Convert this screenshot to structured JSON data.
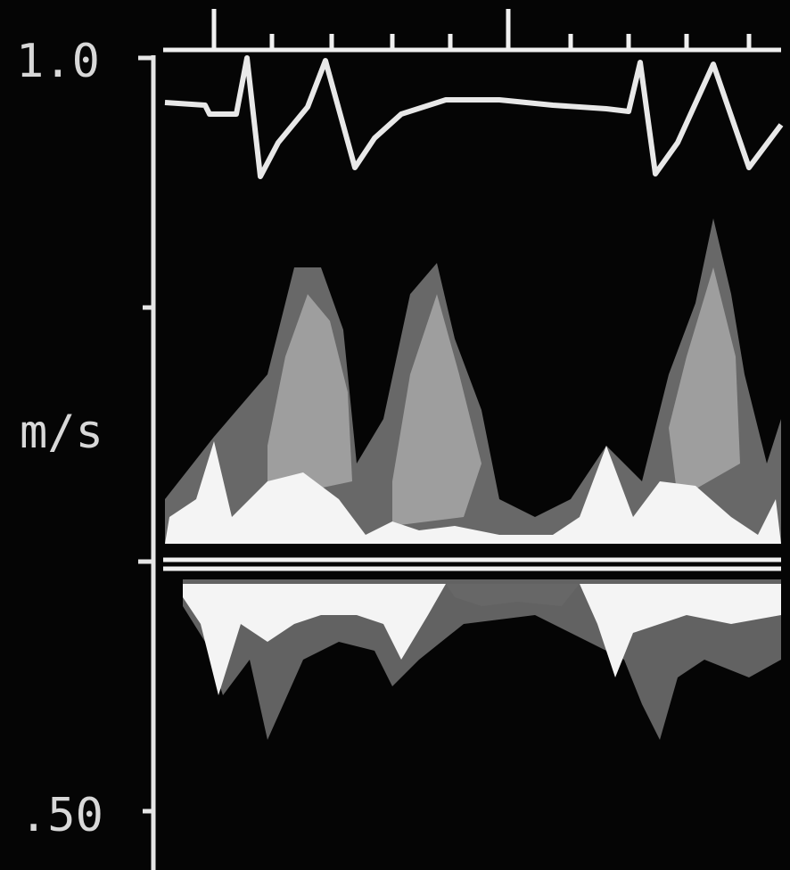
{
  "axis_labels": {
    "top": "1.0",
    "unit": "m/s",
    "bottom": ".50"
  }
}
